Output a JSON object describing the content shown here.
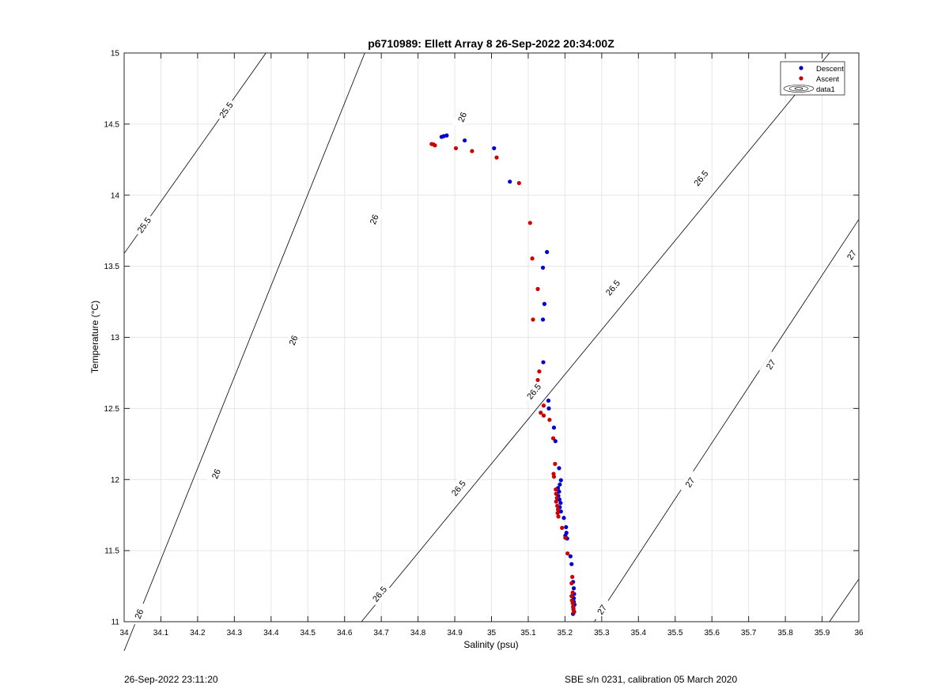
{
  "chart_data": {
    "type": "scatter",
    "title": "p6710989: Ellett Array 8 26-Sep-2022 20:34:00Z",
    "xlabel": "Salinity (psu)",
    "ylabel": "Temperature (°C)",
    "xlim": [
      34,
      36
    ],
    "ylim": [
      11,
      15
    ],
    "x_ticks": [
      "34",
      "34.1",
      "34.2",
      "34.3",
      "34.4",
      "34.5",
      "34.6",
      "34.7",
      "34.8",
      "34.9",
      "35",
      "35.1",
      "35.2",
      "35.3",
      "35.4",
      "35.5",
      "35.6",
      "35.7",
      "35.8",
      "35.9",
      "36"
    ],
    "y_ticks": [
      "11",
      "11.5",
      "12",
      "12.5",
      "13",
      "13.5",
      "14",
      "14.5",
      "15"
    ],
    "grid": true,
    "legend_position": "top-right",
    "series": [
      {
        "name": "Descent",
        "color": "#0000cc",
        "points": [
          [
            34.864,
            14.41
          ],
          [
            34.87,
            14.415
          ],
          [
            34.878,
            14.42
          ],
          [
            34.927,
            14.385
          ],
          [
            35.007,
            14.33
          ],
          [
            35.05,
            14.095
          ],
          [
            35.151,
            13.6
          ],
          [
            35.14,
            13.49
          ],
          [
            35.144,
            13.235
          ],
          [
            35.14,
            13.125
          ],
          [
            35.141,
            12.825
          ],
          [
            35.155,
            12.555
          ],
          [
            35.156,
            12.5
          ],
          [
            35.17,
            12.365
          ],
          [
            35.174,
            12.27
          ],
          [
            35.184,
            12.08
          ],
          [
            35.189,
            11.995
          ],
          [
            35.186,
            11.965
          ],
          [
            35.181,
            11.94
          ],
          [
            35.184,
            11.915
          ],
          [
            35.182,
            11.885
          ],
          [
            35.185,
            11.86
          ],
          [
            35.188,
            11.835
          ],
          [
            35.186,
            11.805
          ],
          [
            35.189,
            11.775
          ],
          [
            35.197,
            11.73
          ],
          [
            35.203,
            11.665
          ],
          [
            35.204,
            11.625
          ],
          [
            35.201,
            11.605
          ],
          [
            35.206,
            11.585
          ],
          [
            35.215,
            11.46
          ],
          [
            35.218,
            11.405
          ],
          [
            35.222,
            11.28
          ],
          [
            35.224,
            11.235
          ],
          [
            35.225,
            11.195
          ],
          [
            35.224,
            11.165
          ],
          [
            35.224,
            11.14
          ],
          [
            35.226,
            11.12
          ],
          [
            35.223,
            11.095
          ],
          [
            35.225,
            11.07
          ],
          [
            35.222,
            11.055
          ]
        ]
      },
      {
        "name": "Ascent",
        "color": "#cc0000",
        "points": [
          [
            34.837,
            14.36
          ],
          [
            34.842,
            14.357
          ],
          [
            34.846,
            14.35
          ],
          [
            34.903,
            14.33
          ],
          [
            34.947,
            14.31
          ],
          [
            35.014,
            14.265
          ],
          [
            35.075,
            14.085
          ],
          [
            35.105,
            13.805
          ],
          [
            35.111,
            13.555
          ],
          [
            35.126,
            13.34
          ],
          [
            35.113,
            13.125
          ],
          [
            35.13,
            12.76
          ],
          [
            35.126,
            12.7
          ],
          [
            35.142,
            12.52
          ],
          [
            35.134,
            12.47
          ],
          [
            35.142,
            12.45
          ],
          [
            35.158,
            12.42
          ],
          [
            35.168,
            12.29
          ],
          [
            35.173,
            12.11
          ],
          [
            35.169,
            12.04
          ],
          [
            35.17,
            12.02
          ],
          [
            35.175,
            11.93
          ],
          [
            35.176,
            11.9
          ],
          [
            35.178,
            11.87
          ],
          [
            35.176,
            11.845
          ],
          [
            35.179,
            11.815
          ],
          [
            35.181,
            11.79
          ],
          [
            35.18,
            11.765
          ],
          [
            35.182,
            11.74
          ],
          [
            35.192,
            11.66
          ],
          [
            35.201,
            11.59
          ],
          [
            35.207,
            11.48
          ],
          [
            35.22,
            11.315
          ],
          [
            35.218,
            11.27
          ],
          [
            35.221,
            11.205
          ],
          [
            35.218,
            11.18
          ],
          [
            35.219,
            11.15
          ],
          [
            35.221,
            11.13
          ],
          [
            35.222,
            11.105
          ],
          [
            35.223,
            11.085
          ],
          [
            35.224,
            11.065
          ]
        ]
      }
    ],
    "contours": [
      {
        "label": "25.5",
        "points": [
          [
            34,
            13.59
          ],
          [
            34.386,
            15
          ]
        ],
        "label_positions": [
          [
            34.054,
            13.79
          ],
          [
            34.277,
            14.6
          ]
        ]
      },
      {
        "label": "26",
        "points": [
          [
            34,
            10.795
          ],
          [
            34.655,
            15
          ]
        ],
        "label_positions": [
          [
            34.04,
            11.055
          ],
          [
            34.25,
            12.04
          ],
          [
            34.46,
            12.98
          ],
          [
            34.68,
            13.83
          ],
          [
            34.92,
            14.55
          ]
        ]
      },
      {
        "label": "26.5",
        "points": [
          [
            34.646,
            11
          ],
          [
            35.92,
            15
          ]
        ],
        "label_positions": [
          [
            34.695,
            11.195
          ],
          [
            34.91,
            11.94
          ],
          [
            35.115,
            12.62
          ],
          [
            35.33,
            13.35
          ],
          [
            35.57,
            14.12
          ],
          [
            35.84,
            14.82
          ]
        ]
      },
      {
        "label": "27",
        "points": [
          [
            35.28,
            11
          ],
          [
            36,
            13.83
          ]
        ],
        "label_positions": [
          [
            35.3,
            11.085
          ],
          [
            35.54,
            11.98
          ],
          [
            35.76,
            12.81
          ],
          [
            35.98,
            13.58
          ]
        ]
      },
      {
        "label": "",
        "points": [
          [
            35.92,
            11
          ],
          [
            36,
            11.3
          ]
        ],
        "label_positions": []
      }
    ]
  },
  "legend": {
    "entries": [
      {
        "label": "Descent",
        "color": "#0000cc",
        "marker": "dot"
      },
      {
        "label": "Ascent",
        "color": "#cc0000",
        "marker": "dot"
      },
      {
        "label": "data1",
        "color": "#000000",
        "marker": "contour"
      }
    ]
  },
  "footer": {
    "left": "26-Sep-2022 23:11:20",
    "right": "SBE s/n 0231, calibration 05 March 2020"
  }
}
